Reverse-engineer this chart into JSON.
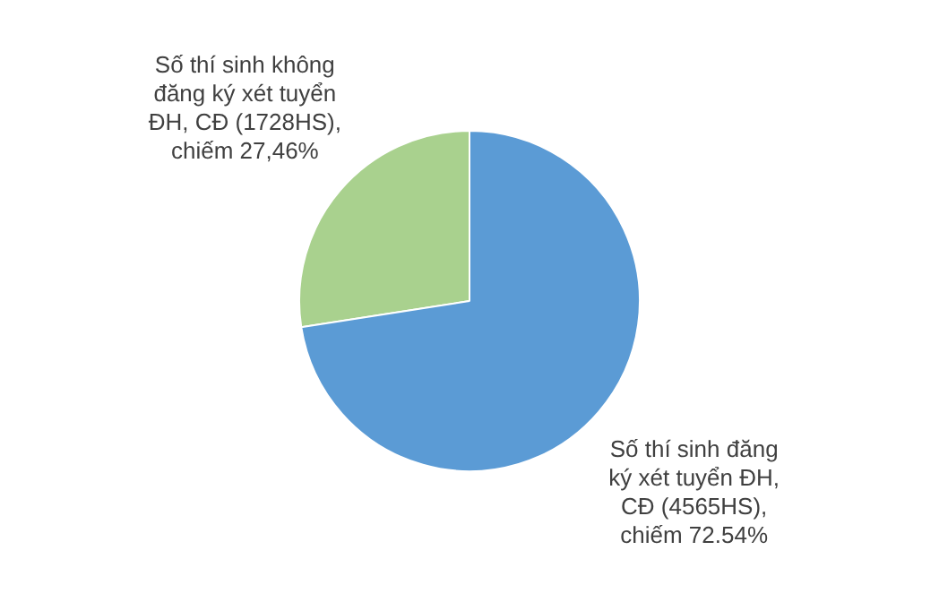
{
  "chart_data": {
    "type": "pie",
    "categories": [
      "Số thí sinh không đăng ký xét tuyển ĐH, CĐ (1728HS), chiếm 27,46%",
      "Số thí sinh đăng ký xét tuyển ĐH, CĐ (4565HS), chiếm 72.54%"
    ],
    "values": [
      1728,
      4565
    ],
    "colors": [
      "#a9d18e",
      "#5b9bd5"
    ],
    "legend": false
  }
}
